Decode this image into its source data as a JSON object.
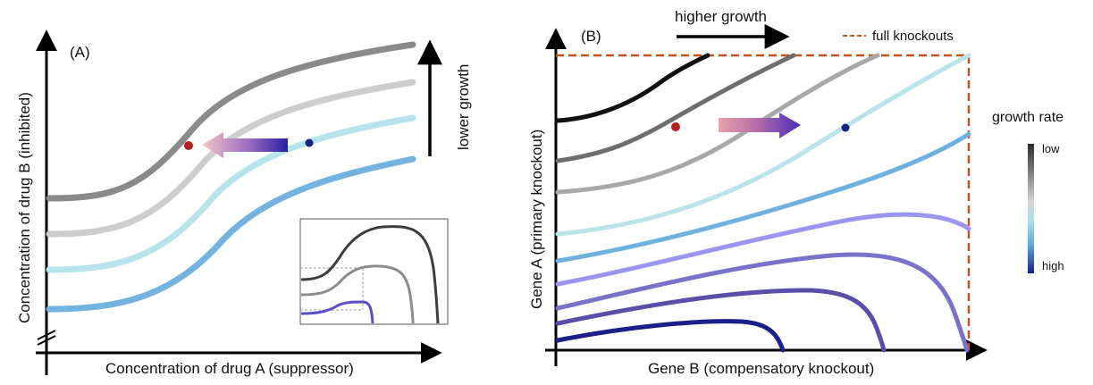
{
  "panelA": {
    "label": "(A)",
    "xlabel": "Concentration of drug A (suppressor)",
    "ylabel": "Concentration of drug B (inhibited)",
    "arrow_label": "lower growth"
  },
  "panelB": {
    "label": "(B)",
    "xlabel": "Gene B (compensatory knockout)",
    "ylabel": "Gene A (primary knockout)",
    "top_arrow_label": "higher growth",
    "dashed_legend": "full knockouts",
    "colorbar": {
      "title": "growth rate",
      "low": "low",
      "high": "high",
      "colors": [
        "#2b2b2b",
        "#8a8a8a",
        "#d0d0d0",
        "#a8e0ea",
        "#5aa9dc",
        "#1a1f8a"
      ]
    }
  },
  "colors": {
    "dark_gray": "#7a7a7a",
    "mid_gray": "#8e8e8e",
    "light_gray": "#cccccc",
    "cyan": "#b6e4ea",
    "blue": "#6fb1de",
    "lavender": "#9b95f0",
    "violet_mid": "#7a72cc",
    "violet_dark": "#5a4fa8",
    "navy": "#1a1f8a",
    "black": "#111111",
    "red_dot": "#b22222",
    "navy_dot": "#1a237e",
    "dashed_border": "#c0531f"
  }
}
